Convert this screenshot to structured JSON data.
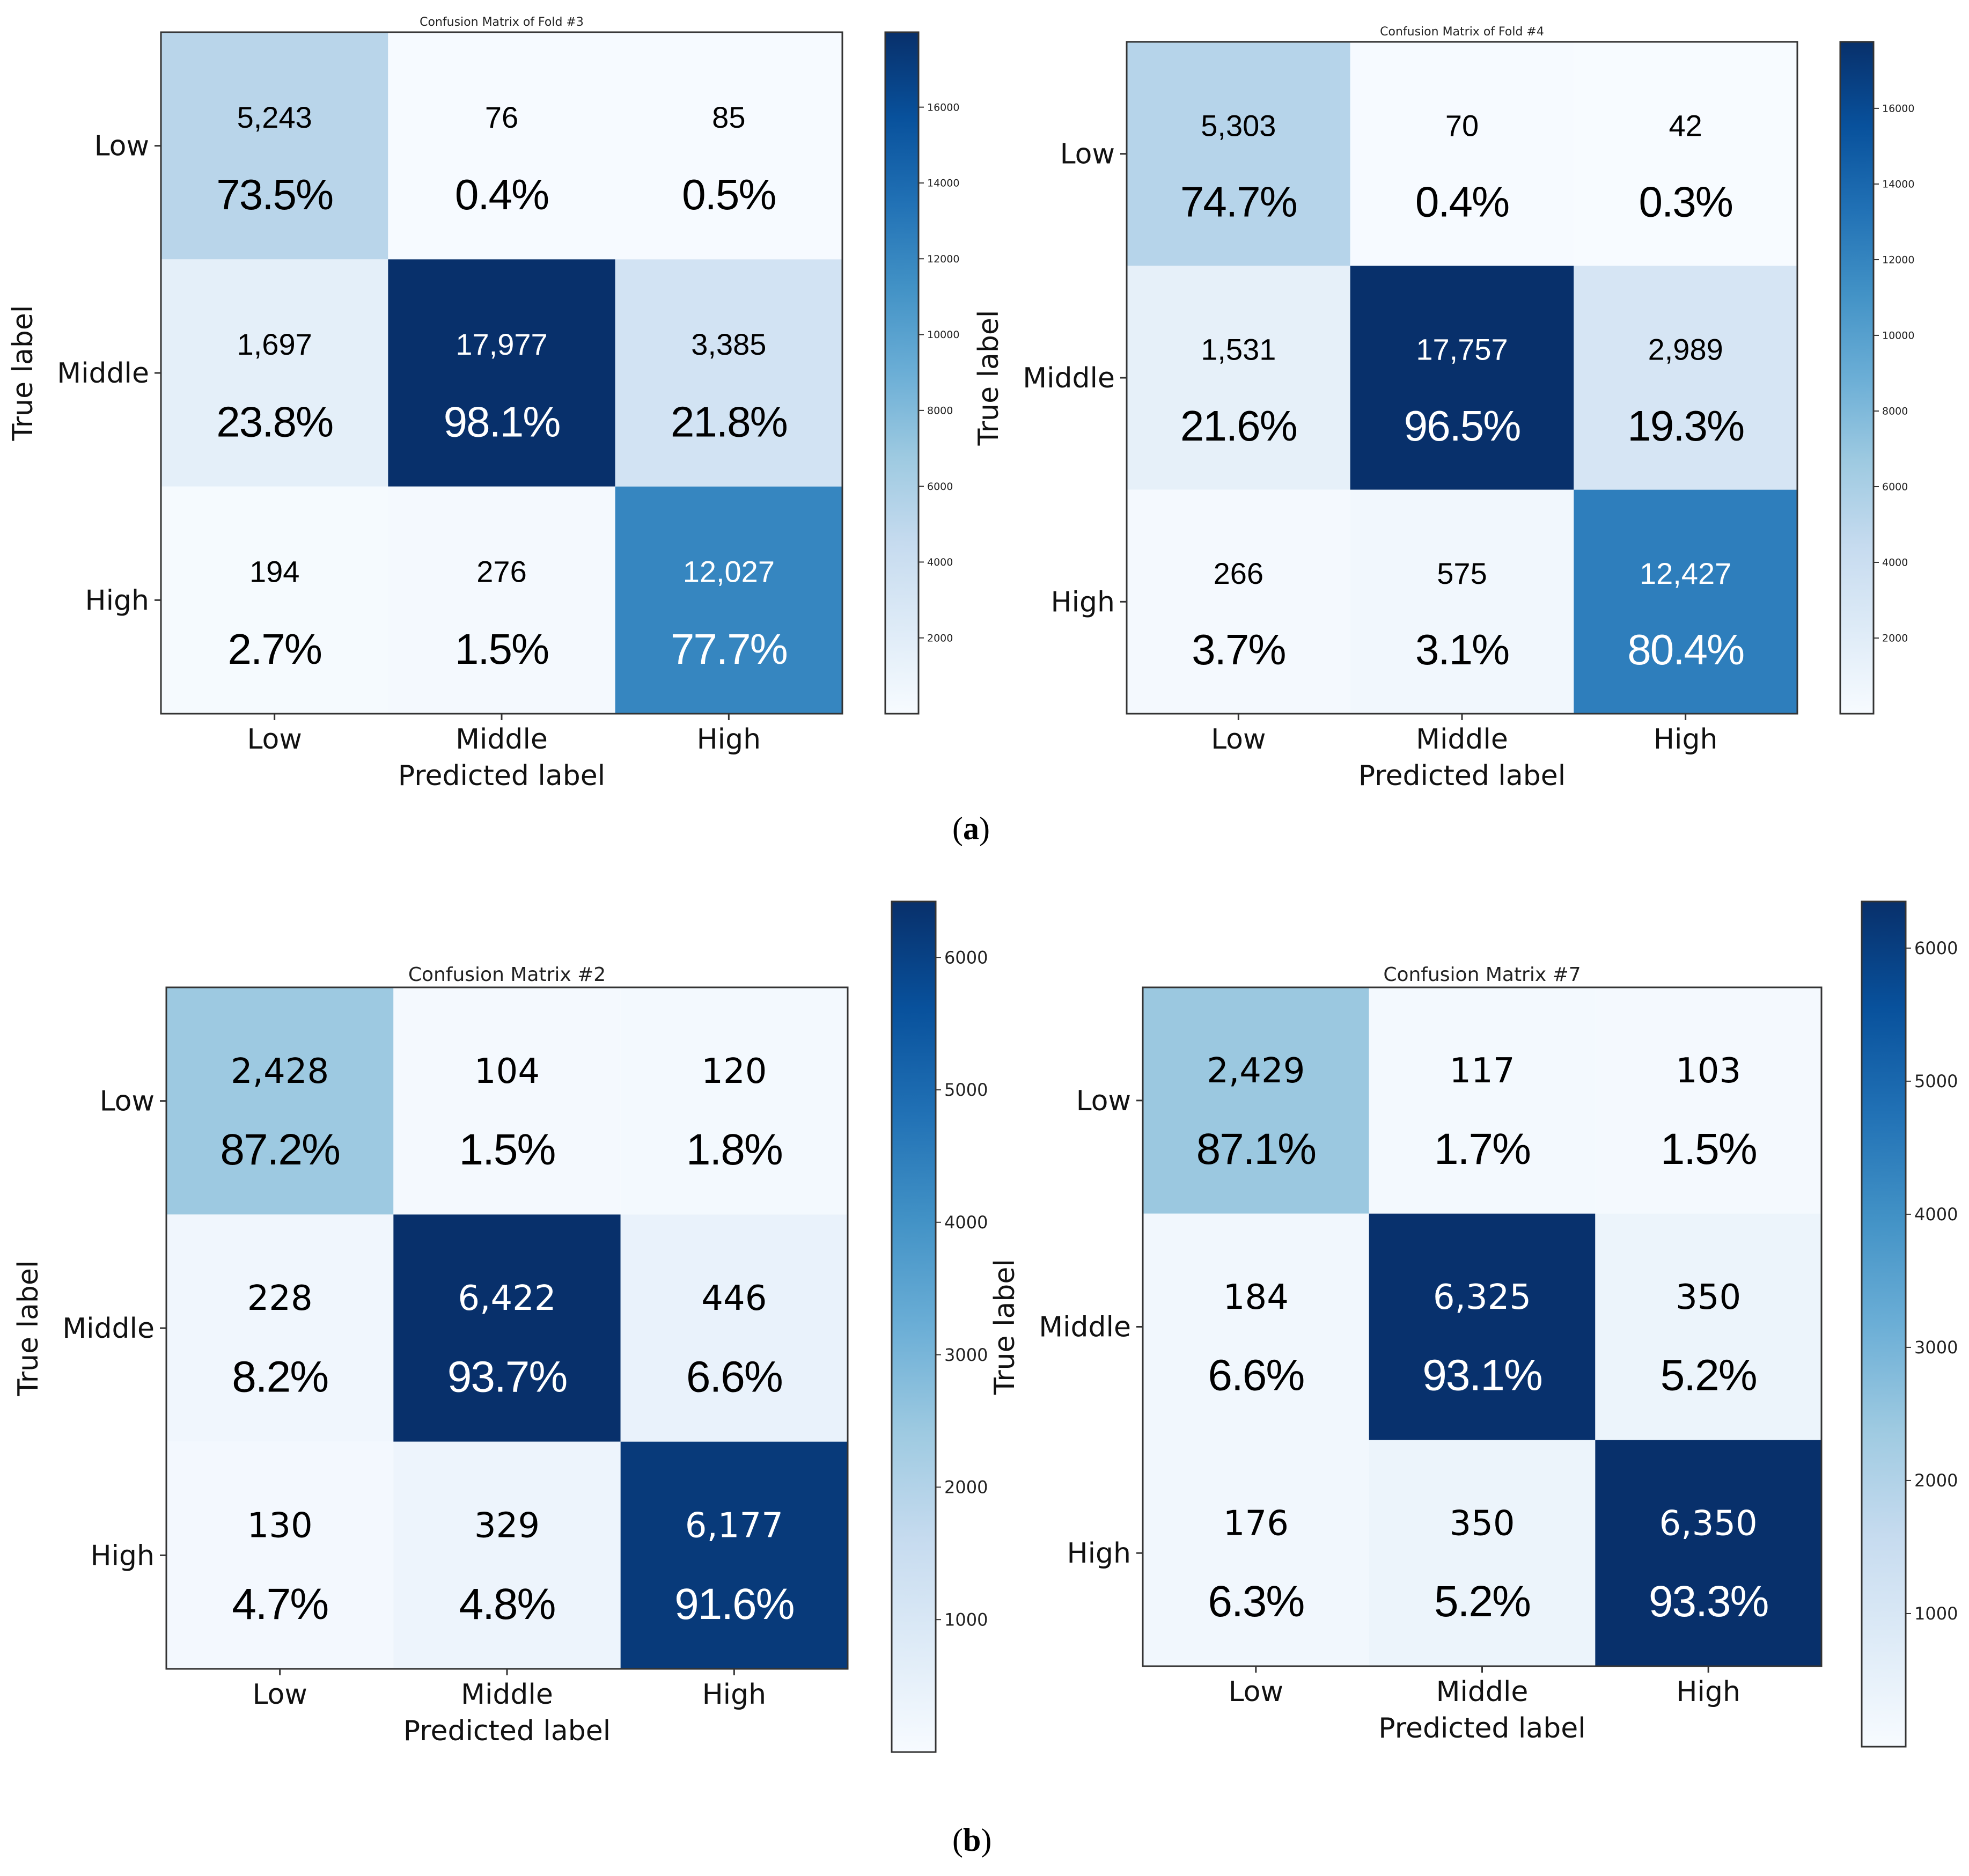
{
  "figure": {
    "panel_labels": [
      "a",
      "b"
    ]
  },
  "chart_data": [
    {
      "type": "heatmap",
      "title": "Confusion Matrix of Fold #3",
      "xlabel": "Predicted label",
      "ylabel": "True label",
      "x_categories": [
        "Low",
        "Middle",
        "High"
      ],
      "y_categories": [
        "Low",
        "Middle",
        "High"
      ],
      "counts": [
        [
          5243,
          76,
          85
        ],
        [
          1697,
          17977,
          3385
        ],
        [
          194,
          276,
          12027
        ]
      ],
      "count_labels": [
        [
          "5,243",
          "76",
          "85"
        ],
        [
          "1,697",
          "17,977",
          "3,385"
        ],
        [
          "194",
          "276",
          "12,027"
        ]
      ],
      "percent_labels": [
        [
          "73.5%",
          "0.4%",
          "0.5%"
        ],
        [
          "23.8%",
          "98.1%",
          "21.8%"
        ],
        [
          "2.7%",
          "1.5%",
          "77.7%"
        ]
      ],
      "colorbar": {
        "range": [
          0,
          17977
        ],
        "ticks": [
          2000,
          4000,
          6000,
          8000,
          10000,
          12000,
          14000,
          16000
        ]
      },
      "colormap": [
        "#f7fbff",
        "#deebf7",
        "#c6dbef",
        "#9ecae1",
        "#6baed6",
        "#4292c6",
        "#2171b5",
        "#08519c",
        "#08306b"
      ]
    },
    {
      "type": "heatmap",
      "title": "Confusion Matrix of Fold #4",
      "xlabel": "Predicted label",
      "ylabel": "True label",
      "x_categories": [
        "Low",
        "Middle",
        "High"
      ],
      "y_categories": [
        "Low",
        "Middle",
        "High"
      ],
      "counts": [
        [
          5303,
          70,
          42
        ],
        [
          1531,
          17757,
          2989
        ],
        [
          266,
          575,
          12427
        ]
      ],
      "count_labels": [
        [
          "5,303",
          "70",
          "42"
        ],
        [
          "1,531",
          "17,757",
          "2,989"
        ],
        [
          "266",
          "575",
          "12,427"
        ]
      ],
      "percent_labels": [
        [
          "74.7%",
          "0.4%",
          "0.3%"
        ],
        [
          "21.6%",
          "96.5%",
          "19.3%"
        ],
        [
          "3.7%",
          "3.1%",
          "80.4%"
        ]
      ],
      "colorbar": {
        "range": [
          0,
          17757
        ],
        "ticks": [
          2000,
          4000,
          6000,
          8000,
          10000,
          12000,
          14000,
          16000
        ]
      },
      "colormap": [
        "#f7fbff",
        "#deebf7",
        "#c6dbef",
        "#9ecae1",
        "#6baed6",
        "#4292c6",
        "#2171b5",
        "#08519c",
        "#08306b"
      ]
    },
    {
      "type": "heatmap",
      "title": "Confusion Matrix #2",
      "xlabel": "Predicted label",
      "ylabel": "True label",
      "x_categories": [
        "Low",
        "Middle",
        "High"
      ],
      "y_categories": [
        "Low",
        "Middle",
        "High"
      ],
      "counts": [
        [
          2428,
          104,
          120
        ],
        [
          228,
          6422,
          446
        ],
        [
          130,
          329,
          6177
        ]
      ],
      "count_labels": [
        [
          "2,428",
          "104",
          "120"
        ],
        [
          "228",
          "6,422",
          "446"
        ],
        [
          "130",
          "329",
          "6,177"
        ]
      ],
      "percent_labels": [
        [
          "87.2%",
          "1.5%",
          "1.8%"
        ],
        [
          "8.2%",
          "93.7%",
          "6.6%"
        ],
        [
          "4.7%",
          "4.8%",
          "91.6%"
        ]
      ],
      "colorbar": {
        "range": [
          0,
          6422
        ],
        "ticks": [
          1000,
          2000,
          3000,
          4000,
          5000,
          6000
        ]
      },
      "colormap": [
        "#f7fbff",
        "#deebf7",
        "#c6dbef",
        "#9ecae1",
        "#6baed6",
        "#4292c6",
        "#2171b5",
        "#08519c",
        "#08306b"
      ]
    },
    {
      "type": "heatmap",
      "title": "Confusion Matrix #7",
      "xlabel": "Predicted label",
      "ylabel": "True label",
      "x_categories": [
        "Low",
        "Middle",
        "High"
      ],
      "y_categories": [
        "Low",
        "Middle",
        "High"
      ],
      "counts": [
        [
          2429,
          117,
          103
        ],
        [
          184,
          6325,
          350
        ],
        [
          176,
          350,
          6350
        ]
      ],
      "count_labels": [
        [
          "2,429",
          "117",
          "103"
        ],
        [
          "184",
          "6,325",
          "350"
        ],
        [
          "176",
          "350",
          "6,350"
        ]
      ],
      "percent_labels": [
        [
          "87.1%",
          "1.7%",
          "1.5%"
        ],
        [
          "6.6%",
          "93.1%",
          "5.2%"
        ],
        [
          "6.3%",
          "5.2%",
          "93.3%"
        ]
      ],
      "colorbar": {
        "range": [
          0,
          6350
        ],
        "ticks": [
          1000,
          2000,
          3000,
          4000,
          5000,
          6000
        ]
      },
      "colormap": [
        "#f7fbff",
        "#deebf7",
        "#c6dbef",
        "#9ecae1",
        "#6baed6",
        "#4292c6",
        "#2171b5",
        "#08519c",
        "#08306b"
      ]
    }
  ]
}
